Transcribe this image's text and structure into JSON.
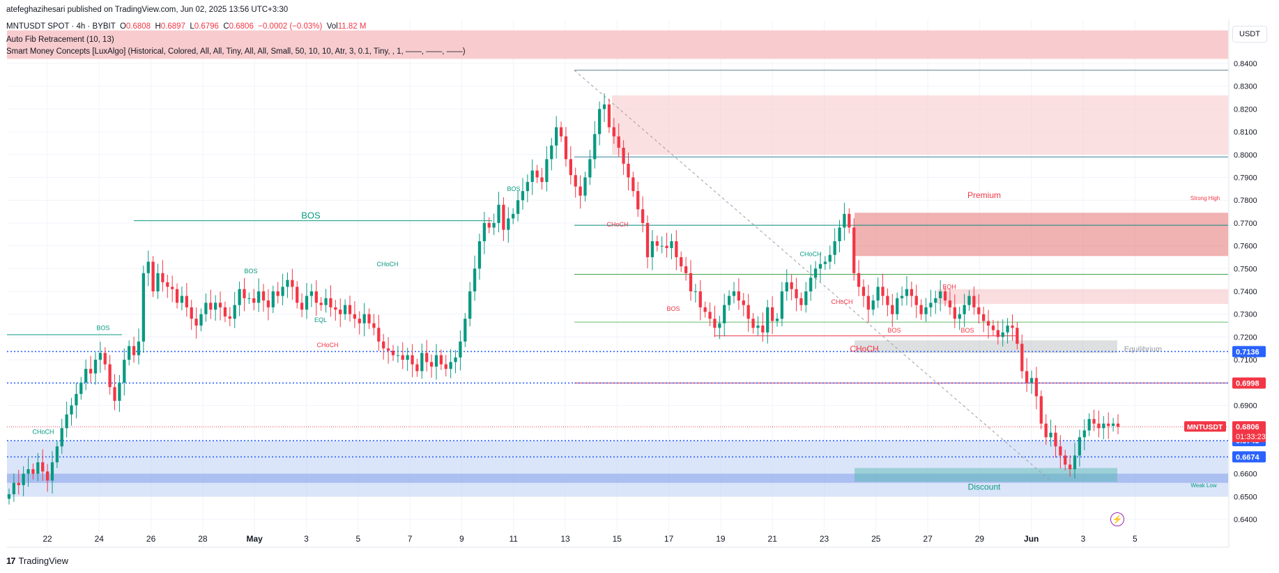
{
  "header": {
    "publisher_line": "atefeghazihesari published on TradingView.com, Jun 02, 2025 13:56 UTC+3:30"
  },
  "legend": {
    "symbol_line": "MNTUSDT SPOT · 4h · BYBIT",
    "o_label": "O",
    "o_value": "0.6808",
    "h_label": "H",
    "h_value": "0.6897",
    "l_label": "L",
    "l_value": "0.6796",
    "c_label": "C",
    "c_value": "0.6806",
    "change": "−0.0002 (−0.03%)",
    "vol_label": "Vol",
    "vol_value": "11.82 M",
    "indicator_1": "Auto Fib Retracement (10, 13)",
    "indicator_2": "Smart Money Concepts [LuxAlgo] (Historical, Colored, All, All, Tiny, All, All, Small, 50, 10, 10, Atr, 3, 0.1, Tiny, , 1, ——, ——, ——)"
  },
  "unit_label": "USDT",
  "footer": {
    "brand": "TradingView",
    "logo_mark": "17"
  },
  "colors": {
    "up": "#089981",
    "down": "#f23645",
    "fib_blue": "#2962ff",
    "premium_fill": "#f7c6c9",
    "discount_fill": "#b8ccf5"
  },
  "chart_data": {
    "type": "candlestick",
    "ylim": [
      0.635,
      0.844
    ],
    "y_ticks": [
      "0.8400",
      "0.8300",
      "0.8200",
      "0.8100",
      "0.8000",
      "0.7900",
      "0.7800",
      "0.7700",
      "0.7600",
      "0.7500",
      "0.7400",
      "0.7300",
      "0.7200",
      "0.7100",
      "0.6900",
      "0.6600",
      "0.6500",
      "0.6400"
    ],
    "x_ticks": [
      "22",
      "24",
      "26",
      "28",
      "May",
      "3",
      "5",
      "7",
      "9",
      "11",
      "13",
      "15",
      "17",
      "19",
      "21",
      "23",
      "25",
      "27",
      "29",
      "Jun",
      "3",
      "5"
    ],
    "price_tags": [
      {
        "value": 0.7136,
        "label": "0.7136",
        "color": "#2962ff"
      },
      {
        "value": 0.6998,
        "label": "0.6998",
        "color": "#f23645"
      },
      {
        "value": 0.6745,
        "label": "0.6745",
        "color": "#2962ff"
      },
      {
        "value": 0.6674,
        "label": "0.6674",
        "color": "#2962ff"
      }
    ],
    "last_price": {
      "symbol": "MNTUSDT",
      "value": 0.6806,
      "label": "0.6806",
      "countdown": "01:33:23"
    },
    "closes": [
      0.651,
      0.656,
      0.655,
      0.66,
      0.662,
      0.66,
      0.665,
      0.661,
      0.657,
      0.665,
      0.672,
      0.68,
      0.686,
      0.69,
      0.695,
      0.7,
      0.706,
      0.704,
      0.71,
      0.713,
      0.708,
      0.698,
      0.692,
      0.7,
      0.71,
      0.716,
      0.712,
      0.718,
      0.748,
      0.753,
      0.74,
      0.748,
      0.744,
      0.742,
      0.741,
      0.735,
      0.738,
      0.733,
      0.728,
      0.725,
      0.73,
      0.735,
      0.732,
      0.735,
      0.733,
      0.729,
      0.728,
      0.734,
      0.741,
      0.737,
      0.737,
      0.735,
      0.74,
      0.736,
      0.733,
      0.74,
      0.738,
      0.742,
      0.745,
      0.742,
      0.735,
      0.732,
      0.738,
      0.74,
      0.735,
      0.734,
      0.737,
      0.733,
      0.732,
      0.73,
      0.734,
      0.73,
      0.728,
      0.726,
      0.73,
      0.726,
      0.724,
      0.718,
      0.715,
      0.714,
      0.712,
      0.712,
      0.71,
      0.712,
      0.708,
      0.705,
      0.713,
      0.709,
      0.707,
      0.712,
      0.708,
      0.706,
      0.709,
      0.711,
      0.718,
      0.728,
      0.74,
      0.75,
      0.762,
      0.77,
      0.768,
      0.77,
      0.778,
      0.767,
      0.772,
      0.774,
      0.78,
      0.784,
      0.788,
      0.793,
      0.79,
      0.788,
      0.798,
      0.804,
      0.812,
      0.808,
      0.798,
      0.791,
      0.786,
      0.782,
      0.79,
      0.798,
      0.809,
      0.82,
      0.822,
      0.812,
      0.808,
      0.803,
      0.796,
      0.79,
      0.784,
      0.776,
      0.77,
      0.755,
      0.762,
      0.76,
      0.76,
      0.759,
      0.762,
      0.755,
      0.751,
      0.748,
      0.74,
      0.74,
      0.733,
      0.731,
      0.728,
      0.724,
      0.726,
      0.734,
      0.738,
      0.74,
      0.736,
      0.734,
      0.728,
      0.724,
      0.725,
      0.722,
      0.733,
      0.727,
      0.728,
      0.74,
      0.744,
      0.741,
      0.737,
      0.734,
      0.74,
      0.746,
      0.75,
      0.752,
      0.753,
      0.756,
      0.762,
      0.768,
      0.774,
      0.768,
      0.748,
      0.742,
      0.738,
      0.732,
      0.736,
      0.742,
      0.738,
      0.734,
      0.73,
      0.737,
      0.738,
      0.741,
      0.738,
      0.734,
      0.73,
      0.733,
      0.735,
      0.737,
      0.74,
      0.736,
      0.733,
      0.728,
      0.73,
      0.734,
      0.738,
      0.733,
      0.73,
      0.727,
      0.725,
      0.723,
      0.72,
      0.722,
      0.725,
      0.724,
      0.717,
      0.705,
      0.7,
      0.702,
      0.694,
      0.682,
      0.676,
      0.678,
      0.672,
      0.668,
      0.664,
      0.662,
      0.668,
      0.676,
      0.679,
      0.684,
      0.682,
      0.68,
      0.682,
      0.681,
      0.682,
      0.6806
    ],
    "annotations": [
      {
        "label": "BOS",
        "color": "#089981"
      },
      {
        "label": "BOS",
        "color": "#089981"
      },
      {
        "label": "BOS",
        "color": "#089981"
      },
      {
        "label": "BOS",
        "color": "#089981"
      },
      {
        "label": "CHoCH",
        "color": "#089981"
      },
      {
        "label": "CHoCH",
        "color": "#089981"
      },
      {
        "label": "CHoCH",
        "color": "#089981"
      },
      {
        "label": "EQL",
        "color": "#089981"
      },
      {
        "label": "CHoCH",
        "color": "#f23645"
      },
      {
        "label": "CHoCH",
        "color": "#f23645"
      },
      {
        "label": "BOS",
        "color": "#f23645"
      },
      {
        "label": "CHoCH",
        "color": "#f23645"
      },
      {
        "label": "BOS",
        "color": "#f23645"
      },
      {
        "label": "BOS",
        "color": "#f23645"
      },
      {
        "label": "EQH",
        "color": "#f23645"
      },
      {
        "label": "CHoCH",
        "color": "#f23645"
      },
      {
        "label": "Premium",
        "color": "#f23645"
      },
      {
        "label": "Strong High",
        "color": "#f23645"
      },
      {
        "label": "Equilibrium",
        "color": "#9598a1"
      },
      {
        "label": "Discount",
        "color": "#089981"
      },
      {
        "label": "Weak Low",
        "color": "#089981"
      }
    ]
  }
}
